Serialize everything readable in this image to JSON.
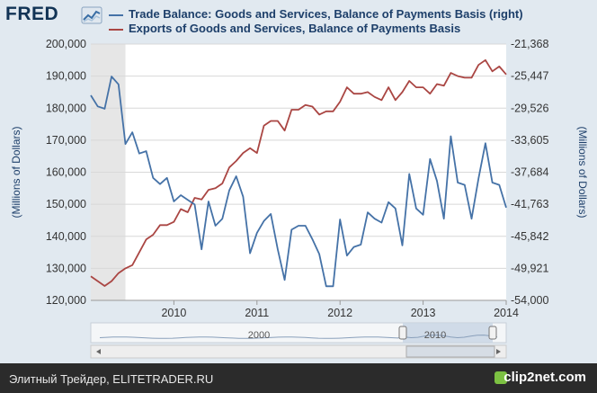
{
  "header": {
    "logo_text": "FRED",
    "legend": [
      {
        "label": "Trade Balance: Goods and Services, Balance of Payments Basis (right)",
        "color": "#4572a7"
      },
      {
        "label": "Exports of Goods and Services, Balance of Payments Basis",
        "color": "#aa4643"
      }
    ]
  },
  "footer": {
    "caption": "Элитный Трейдер, ELITETRADER.RU",
    "brand": "clip2net.com"
  },
  "colors": {
    "exports": "#aa4643",
    "trade_balance": "#4572a7",
    "recession_shade": "#e6e6e6",
    "grid": "#d8d8d8"
  },
  "chart_data": {
    "type": "line",
    "x_ticks": [
      "2010",
      "2011",
      "2012",
      "2013",
      "2014"
    ],
    "x_range": [
      "2009-01",
      "2014-01"
    ],
    "left_axis": {
      "label": "(Millions of Dollars)",
      "ticks": [
        "120,000",
        "130,000",
        "140,000",
        "150,000",
        "160,000",
        "170,000",
        "180,000",
        "190,000",
        "200,000"
      ],
      "range": [
        120000,
        200000
      ]
    },
    "right_axis": {
      "label": "(Millions of Dollars)",
      "ticks": [
        "-54,000",
        "-49,921",
        "-45,842",
        "-41,763",
        "-37,684",
        "-33,605",
        "-29,526",
        "-25,447",
        "-21,368"
      ],
      "range": [
        -54000,
        -21368
      ]
    },
    "recession_shading": [
      "2009-01",
      "2009-06"
    ],
    "navigator_labels": [
      "2000",
      "2010"
    ],
    "series": [
      {
        "name": "Exports of Goods and Services, Balance of Payments Basis",
        "axis": "left",
        "x": [
          "2009-01",
          "2009-02",
          "2009-03",
          "2009-04",
          "2009-05",
          "2009-06",
          "2009-07",
          "2009-08",
          "2009-09",
          "2009-10",
          "2009-11",
          "2009-12",
          "2010-01",
          "2010-02",
          "2010-03",
          "2010-04",
          "2010-05",
          "2010-06",
          "2010-07",
          "2010-08",
          "2010-09",
          "2010-10",
          "2010-11",
          "2010-12",
          "2011-01",
          "2011-02",
          "2011-03",
          "2011-04",
          "2011-05",
          "2011-06",
          "2011-07",
          "2011-08",
          "2011-09",
          "2011-10",
          "2011-11",
          "2011-12",
          "2012-01",
          "2012-02",
          "2012-03",
          "2012-04",
          "2012-05",
          "2012-06",
          "2012-07",
          "2012-08",
          "2012-09",
          "2012-10",
          "2012-11",
          "2012-12",
          "2013-01",
          "2013-02",
          "2013-03",
          "2013-04",
          "2013-05",
          "2013-06",
          "2013-07",
          "2013-08",
          "2013-09",
          "2013-10",
          "2013-11",
          "2013-12",
          "2014-01"
        ],
        "values": [
          127500,
          126000,
          124500,
          126000,
          128500,
          130000,
          131000,
          135000,
          139000,
          140500,
          143500,
          143500,
          144500,
          148500,
          147500,
          152000,
          151500,
          154500,
          155000,
          156500,
          161500,
          163500,
          166000,
          167500,
          166000,
          174500,
          176000,
          176000,
          173000,
          179500,
          179500,
          181000,
          180500,
          178000,
          179000,
          179000,
          182000,
          186500,
          184500,
          184500,
          185000,
          183500,
          182500,
          186500,
          182500,
          185000,
          188500,
          186500,
          186500,
          184500,
          187500,
          187000,
          191000,
          190000,
          189500,
          189500,
          193500,
          195000,
          191500,
          193000,
          190500
        ]
      },
      {
        "name": "Trade Balance: Goods and Services, Balance of Payments Basis (right)",
        "axis": "right",
        "x": [
          "2009-01",
          "2009-02",
          "2009-03",
          "2009-04",
          "2009-05",
          "2009-06",
          "2009-07",
          "2009-08",
          "2009-09",
          "2009-10",
          "2009-11",
          "2009-12",
          "2010-01",
          "2010-02",
          "2010-03",
          "2010-04",
          "2010-05",
          "2010-06",
          "2010-07",
          "2010-08",
          "2010-09",
          "2010-10",
          "2010-11",
          "2010-12",
          "2011-01",
          "2011-02",
          "2011-03",
          "2011-04",
          "2011-05",
          "2011-06",
          "2011-07",
          "2011-08",
          "2011-09",
          "2011-10",
          "2011-11",
          "2011-12",
          "2012-01",
          "2012-02",
          "2012-03",
          "2012-04",
          "2012-05",
          "2012-06",
          "2012-07",
          "2012-08",
          "2012-09",
          "2012-10",
          "2012-11",
          "2012-12",
          "2013-01",
          "2013-02",
          "2013-03",
          "2013-04",
          "2013-05",
          "2013-06",
          "2013-07",
          "2013-08",
          "2013-09",
          "2013-10",
          "2013-11",
          "2013-12",
          "2014-01"
        ],
        "values": [
          -27900,
          -29300,
          -29600,
          -25500,
          -26500,
          -34100,
          -32600,
          -35300,
          -35000,
          -38400,
          -39200,
          -38400,
          -41400,
          -40600,
          -41200,
          -41800,
          -47500,
          -41400,
          -44500,
          -43600,
          -40000,
          -38200,
          -40800,
          -48000,
          -45400,
          -43900,
          -43000,
          -47500,
          -51400,
          -45000,
          -44500,
          -44500,
          -46200,
          -48100,
          -52200,
          -52200,
          -43700,
          -48300,
          -47200,
          -46900,
          -42800,
          -43600,
          -44100,
          -41500,
          -42300,
          -47000,
          -37900,
          -42300,
          -43100,
          -36000,
          -38800,
          -43600,
          -33100,
          -39000,
          -39300,
          -43600,
          -38500,
          -34000,
          -39000,
          -39300,
          -42200
        ]
      }
    ]
  }
}
